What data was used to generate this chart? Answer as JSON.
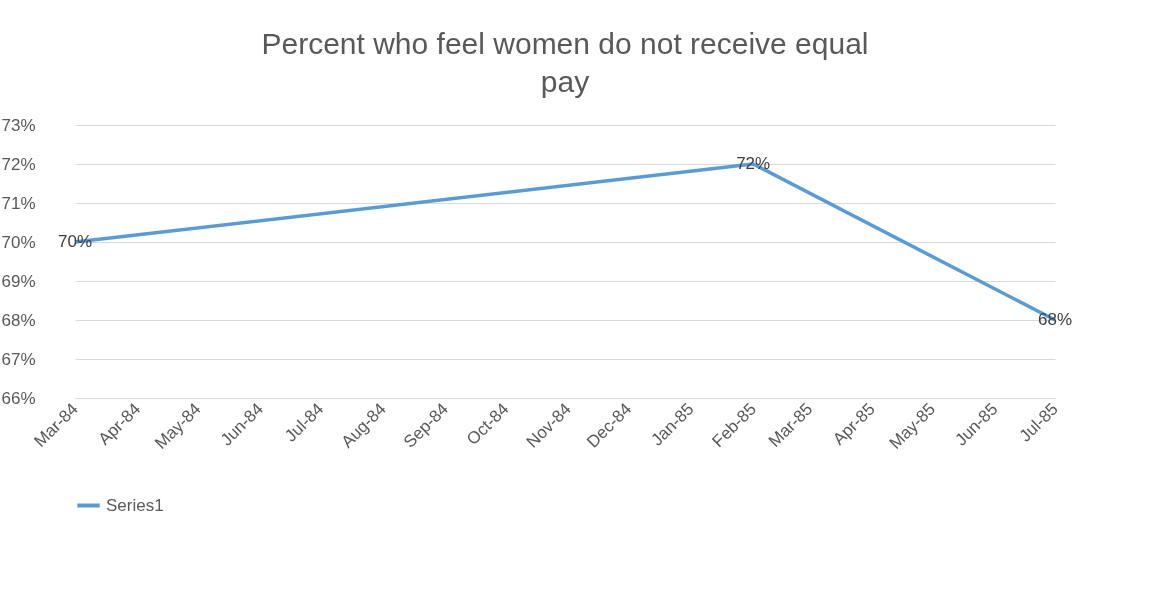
{
  "chart_data": {
    "type": "line",
    "title": "Percent who feel women do not receive equal pay",
    "x": [
      "1984-03",
      "1985-02",
      "1985-07"
    ],
    "series": [
      {
        "name": "Series1",
        "color": "#5b9bd5",
        "values": [
          70,
          72,
          68
        ],
        "value_labels": [
          "70%",
          "72%",
          "68%"
        ]
      }
    ],
    "xlim": [
      "1984-03",
      "1985-07"
    ],
    "xticks": [
      {
        "value": "1984-03",
        "label": "Mar-84"
      },
      {
        "value": "1984-04",
        "label": "Apr-84"
      },
      {
        "value": "1984-05",
        "label": "May-84"
      },
      {
        "value": "1984-06",
        "label": "Jun-84"
      },
      {
        "value": "1984-07",
        "label": "Jul-84"
      },
      {
        "value": "1984-08",
        "label": "Aug-84"
      },
      {
        "value": "1984-09",
        "label": "Sep-84"
      },
      {
        "value": "1984-10",
        "label": "Oct-84"
      },
      {
        "value": "1984-11",
        "label": "Nov-84"
      },
      {
        "value": "1984-12",
        "label": "Dec-84"
      },
      {
        "value": "1985-01",
        "label": "Jan-85"
      },
      {
        "value": "1985-02",
        "label": "Feb-85"
      },
      {
        "value": "1985-03",
        "label": "Mar-85"
      },
      {
        "value": "1985-04",
        "label": "Apr-85"
      },
      {
        "value": "1985-05",
        "label": "May-85"
      },
      {
        "value": "1985-06",
        "label": "Jun-85"
      },
      {
        "value": "1985-07",
        "label": "Jul-85"
      }
    ],
    "ylim": [
      66,
      73
    ],
    "yticks": [
      {
        "value": 66,
        "label": "66%"
      },
      {
        "value": 67,
        "label": "67%"
      },
      {
        "value": 68,
        "label": "68%"
      },
      {
        "value": 69,
        "label": "69%"
      },
      {
        "value": 70,
        "label": "70%"
      },
      {
        "value": 71,
        "label": "71%"
      },
      {
        "value": 72,
        "label": "72%"
      },
      {
        "value": 73,
        "label": "73%"
      }
    ],
    "grid": "y",
    "legend": "bottom",
    "line_style": "solid"
  }
}
